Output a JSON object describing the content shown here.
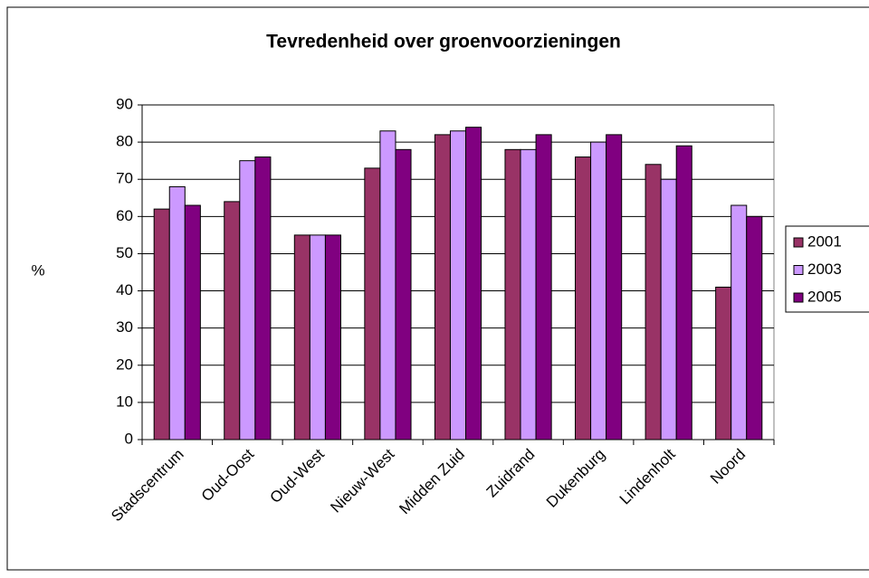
{
  "chart_data": {
    "type": "bar",
    "title": "Tevredenheid over groenvoorzieningen",
    "y_label": "%",
    "categories": [
      "Stadscentrum",
      "Oud-Oost",
      "Oud-West",
      "Nieuw-West",
      "Midden Zuid",
      "Zuidrand",
      "Dukenburg",
      "Lindenholt",
      "Noord"
    ],
    "series": [
      {
        "name": "2001",
        "color": "#993366",
        "values": [
          62,
          64,
          55,
          73,
          82,
          78,
          76,
          74,
          41
        ]
      },
      {
        "name": "2003",
        "color": "#cc99ff",
        "values": [
          68,
          75,
          55,
          83,
          83,
          78,
          80,
          70,
          63
        ]
      },
      {
        "name": "2005",
        "color": "#800080",
        "values": [
          63,
          76,
          55,
          78,
          84,
          82,
          82,
          79,
          60
        ]
      }
    ],
    "ylim": [
      0,
      90
    ],
    "yticks": [
      0,
      10,
      20,
      30,
      40,
      50,
      60,
      70,
      80,
      90
    ],
    "grid": true,
    "legend": "right"
  }
}
